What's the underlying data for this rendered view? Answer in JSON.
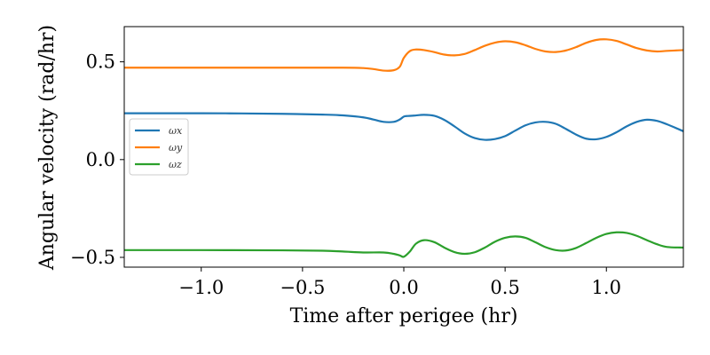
{
  "chart_data": {
    "type": "line",
    "title": "",
    "xlabel": "Time after perigee (hr)",
    "ylabel": "Angular velocity (rad/hr)",
    "xlim": [
      -1.38,
      1.38
    ],
    "ylim": [
      -0.55,
      0.68
    ],
    "xticks": [
      {
        "value": -1.0,
        "label": "−1.0"
      },
      {
        "value": -0.5,
        "label": "−0.5"
      },
      {
        "value": 0.0,
        "label": "0.0"
      },
      {
        "value": 0.5,
        "label": "0.5"
      },
      {
        "value": 1.0,
        "label": "1.0"
      }
    ],
    "yticks": [
      {
        "value": 0.5,
        "label": "0.5"
      },
      {
        "value": 0.0,
        "label": "0.0"
      },
      {
        "value": -0.5,
        "label": "−0.5"
      }
    ],
    "grid": false,
    "legend_position": "center-left",
    "series": [
      {
        "name": "ωx",
        "color": "#1f77b4",
        "x": [
          -1.38,
          -1.0,
          -0.8,
          -0.6,
          -0.4,
          -0.3,
          -0.2,
          -0.15,
          -0.1,
          -0.05,
          -0.02,
          0.0,
          0.02,
          0.05,
          0.1,
          0.15,
          0.2,
          0.25,
          0.3,
          0.35,
          0.4,
          0.45,
          0.5,
          0.55,
          0.6,
          0.65,
          0.7,
          0.75,
          0.8,
          0.85,
          0.9,
          0.95,
          1.0,
          1.05,
          1.1,
          1.15,
          1.2,
          1.25,
          1.3,
          1.38
        ],
        "y": [
          0.237,
          0.237,
          0.236,
          0.234,
          0.23,
          0.226,
          0.216,
          0.205,
          0.193,
          0.193,
          0.205,
          0.22,
          0.223,
          0.225,
          0.229,
          0.224,
          0.203,
          0.17,
          0.134,
          0.11,
          0.101,
          0.105,
          0.12,
          0.148,
          0.175,
          0.19,
          0.193,
          0.183,
          0.157,
          0.128,
          0.107,
          0.104,
          0.116,
          0.14,
          0.17,
          0.193,
          0.204,
          0.198,
          0.18,
          0.145
        ]
      },
      {
        "name": "ωy",
        "color": "#ff7f0e",
        "x": [
          -1.38,
          -1.0,
          -0.6,
          -0.3,
          -0.2,
          -0.15,
          -0.1,
          -0.05,
          -0.02,
          0.0,
          0.03,
          0.06,
          0.1,
          0.15,
          0.2,
          0.25,
          0.3,
          0.35,
          0.4,
          0.45,
          0.5,
          0.55,
          0.6,
          0.65,
          0.7,
          0.75,
          0.8,
          0.85,
          0.9,
          0.95,
          1.0,
          1.05,
          1.1,
          1.15,
          1.2,
          1.25,
          1.3,
          1.38
        ],
        "y": [
          0.47,
          0.47,
          0.47,
          0.47,
          0.468,
          0.463,
          0.455,
          0.457,
          0.475,
          0.52,
          0.555,
          0.563,
          0.56,
          0.55,
          0.537,
          0.533,
          0.54,
          0.56,
          0.582,
          0.598,
          0.605,
          0.6,
          0.585,
          0.566,
          0.553,
          0.55,
          0.558,
          0.575,
          0.597,
          0.612,
          0.615,
          0.607,
          0.589,
          0.57,
          0.558,
          0.553,
          0.556,
          0.56
        ]
      },
      {
        "name": "ωz",
        "color": "#2ca02c",
        "x": [
          -1.38,
          -1.0,
          -0.6,
          -0.4,
          -0.3,
          -0.2,
          -0.1,
          -0.05,
          -0.02,
          0.0,
          0.03,
          0.06,
          0.1,
          0.15,
          0.2,
          0.25,
          0.3,
          0.35,
          0.4,
          0.45,
          0.5,
          0.55,
          0.6,
          0.65,
          0.7,
          0.75,
          0.8,
          0.85,
          0.9,
          0.95,
          1.0,
          1.05,
          1.1,
          1.15,
          1.2,
          1.25,
          1.3,
          1.38
        ],
        "y": [
          -0.463,
          -0.463,
          -0.464,
          -0.466,
          -0.47,
          -0.475,
          -0.475,
          -0.482,
          -0.49,
          -0.497,
          -0.47,
          -0.43,
          -0.412,
          -0.422,
          -0.45,
          -0.473,
          -0.482,
          -0.474,
          -0.45,
          -0.42,
          -0.4,
          -0.393,
          -0.4,
          -0.423,
          -0.448,
          -0.463,
          -0.465,
          -0.452,
          -0.427,
          -0.4,
          -0.38,
          -0.372,
          -0.375,
          -0.39,
          -0.412,
          -0.433,
          -0.447,
          -0.45
        ]
      }
    ]
  }
}
